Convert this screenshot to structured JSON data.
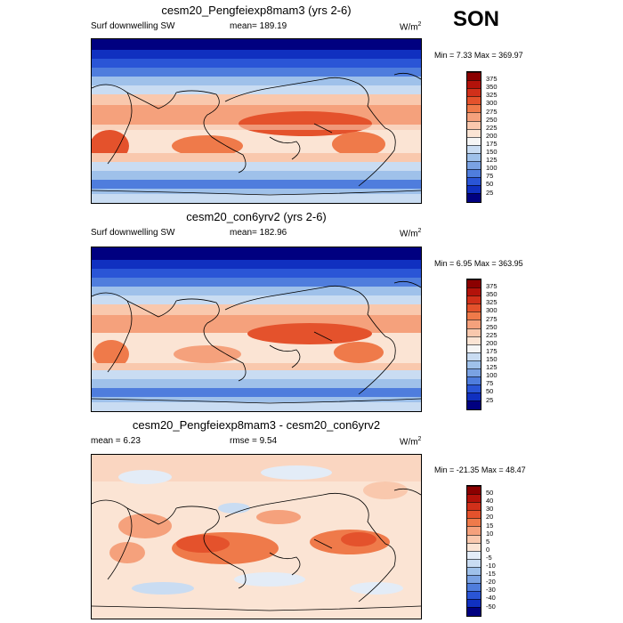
{
  "season": "SON",
  "panels": [
    {
      "title": "cesm20_Pengfeiexp8mam3 (yrs 2-6)",
      "left_label": "Surf downwelling SW",
      "center_label": "mean= 189.19",
      "units_base": "W/m",
      "units_exp": "2",
      "min_label": "Min =",
      "min_value": "7.33",
      "max_label": "Max =",
      "max_value": "369.97",
      "colorbar": {
        "levels": [
          "375",
          "350",
          "325",
          "300",
          "275",
          "250",
          "225",
          "200",
          "175",
          "150",
          "125",
          "100",
          "75",
          "50",
          "25"
        ],
        "colors": [
          "#8b0000",
          "#b3120a",
          "#d1301a",
          "#e4522c",
          "#ef7a4a",
          "#f5a17c",
          "#f9c8ad",
          "#fbe4d4",
          "#f5f5f5",
          "#c9dcf2",
          "#9fc1ea",
          "#7aa2e3",
          "#4f7ddd",
          "#2a55d6",
          "#1030c0",
          "#000080"
        ]
      }
    },
    {
      "title": "cesm20_con6yrv2 (yrs 2-6)",
      "left_label": "Surf downwelling SW",
      "center_label": "mean= 182.96",
      "units_base": "W/m",
      "units_exp": "2",
      "min_label": "Min =",
      "min_value": "6.95",
      "max_label": "Max =",
      "max_value": "363.95",
      "colorbar": {
        "levels": [
          "375",
          "350",
          "325",
          "300",
          "275",
          "250",
          "225",
          "200",
          "175",
          "150",
          "125",
          "100",
          "75",
          "50",
          "25"
        ],
        "colors": [
          "#8b0000",
          "#b3120a",
          "#d1301a",
          "#e4522c",
          "#ef7a4a",
          "#f5a17c",
          "#f9c8ad",
          "#fbe4d4",
          "#f5f5f5",
          "#c9dcf2",
          "#9fc1ea",
          "#7aa2e3",
          "#4f7ddd",
          "#2a55d6",
          "#1030c0",
          "#000080"
        ]
      }
    },
    {
      "title": "cesm20_Pengfeiexp8mam3 - cesm20_con6yrv2",
      "left_label": "mean =   6.23",
      "center_label": "rmse =   9.54",
      "units_base": "W/m",
      "units_exp": "2",
      "min_label": "Min =",
      "min_value": "-21.35",
      "max_label": "Max =",
      "max_value": "48.47",
      "colorbar": {
        "levels": [
          "50",
          "40",
          "30",
          "20",
          "15",
          "10",
          "5",
          "0",
          "-5",
          "-10",
          "-15",
          "-20",
          "-30",
          "-40",
          "-50"
        ],
        "colors": [
          "#8b0000",
          "#b3120a",
          "#d1301a",
          "#e4522c",
          "#ef7a4a",
          "#f5a17c",
          "#f9c8ad",
          "#fbe4d4",
          "#e3ecf7",
          "#c9dcf2",
          "#9fc1ea",
          "#7aa2e3",
          "#4f7ddd",
          "#2a55d6",
          "#1030c0",
          "#000080"
        ]
      }
    }
  ]
}
